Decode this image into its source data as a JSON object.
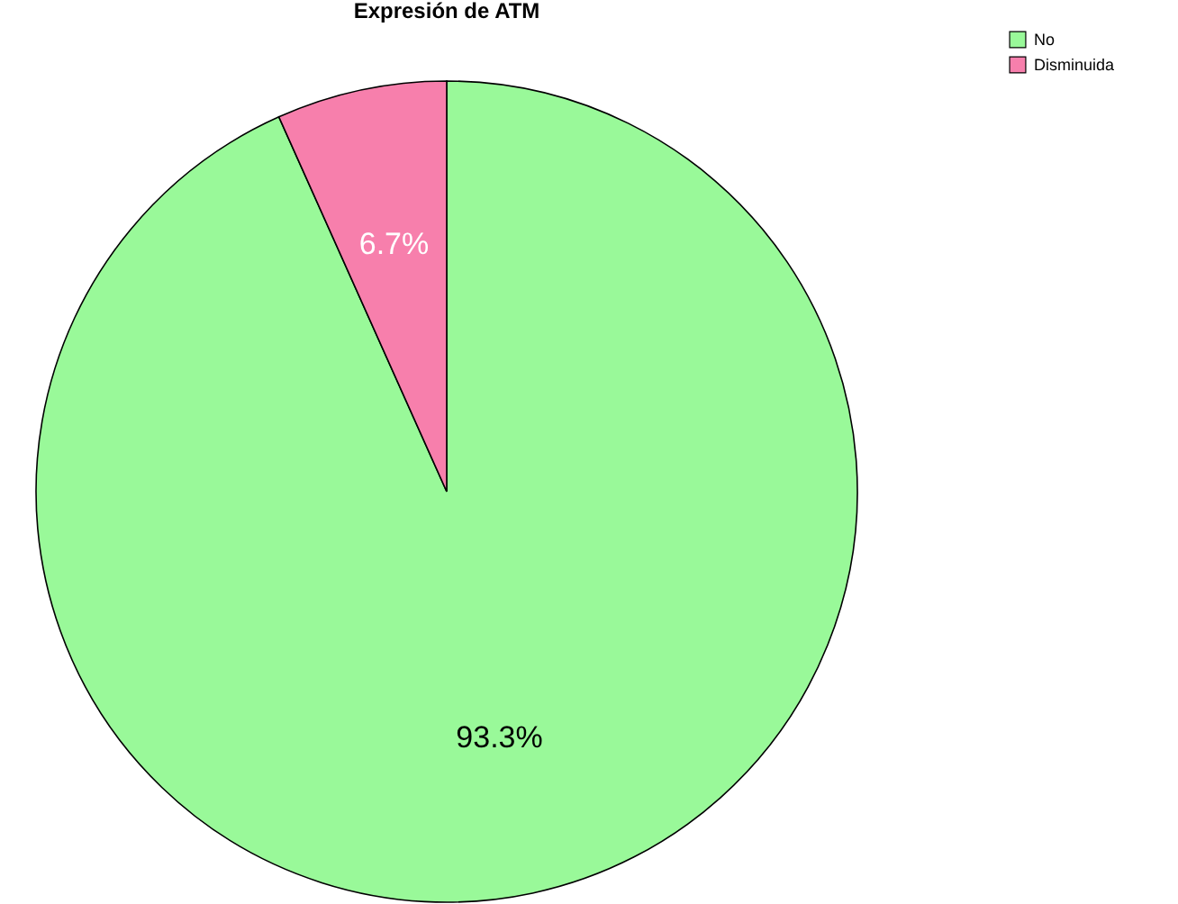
{
  "chart_data": {
    "type": "pie",
    "title": "Expresión de ATM",
    "categories": [
      "No",
      "Disminuida"
    ],
    "values": [
      93.3,
      6.7
    ],
    "colors": [
      "#99f999",
      "#f77fac"
    ],
    "value_labels": [
      "93.3%",
      "6.7%"
    ],
    "legend": "top right"
  }
}
